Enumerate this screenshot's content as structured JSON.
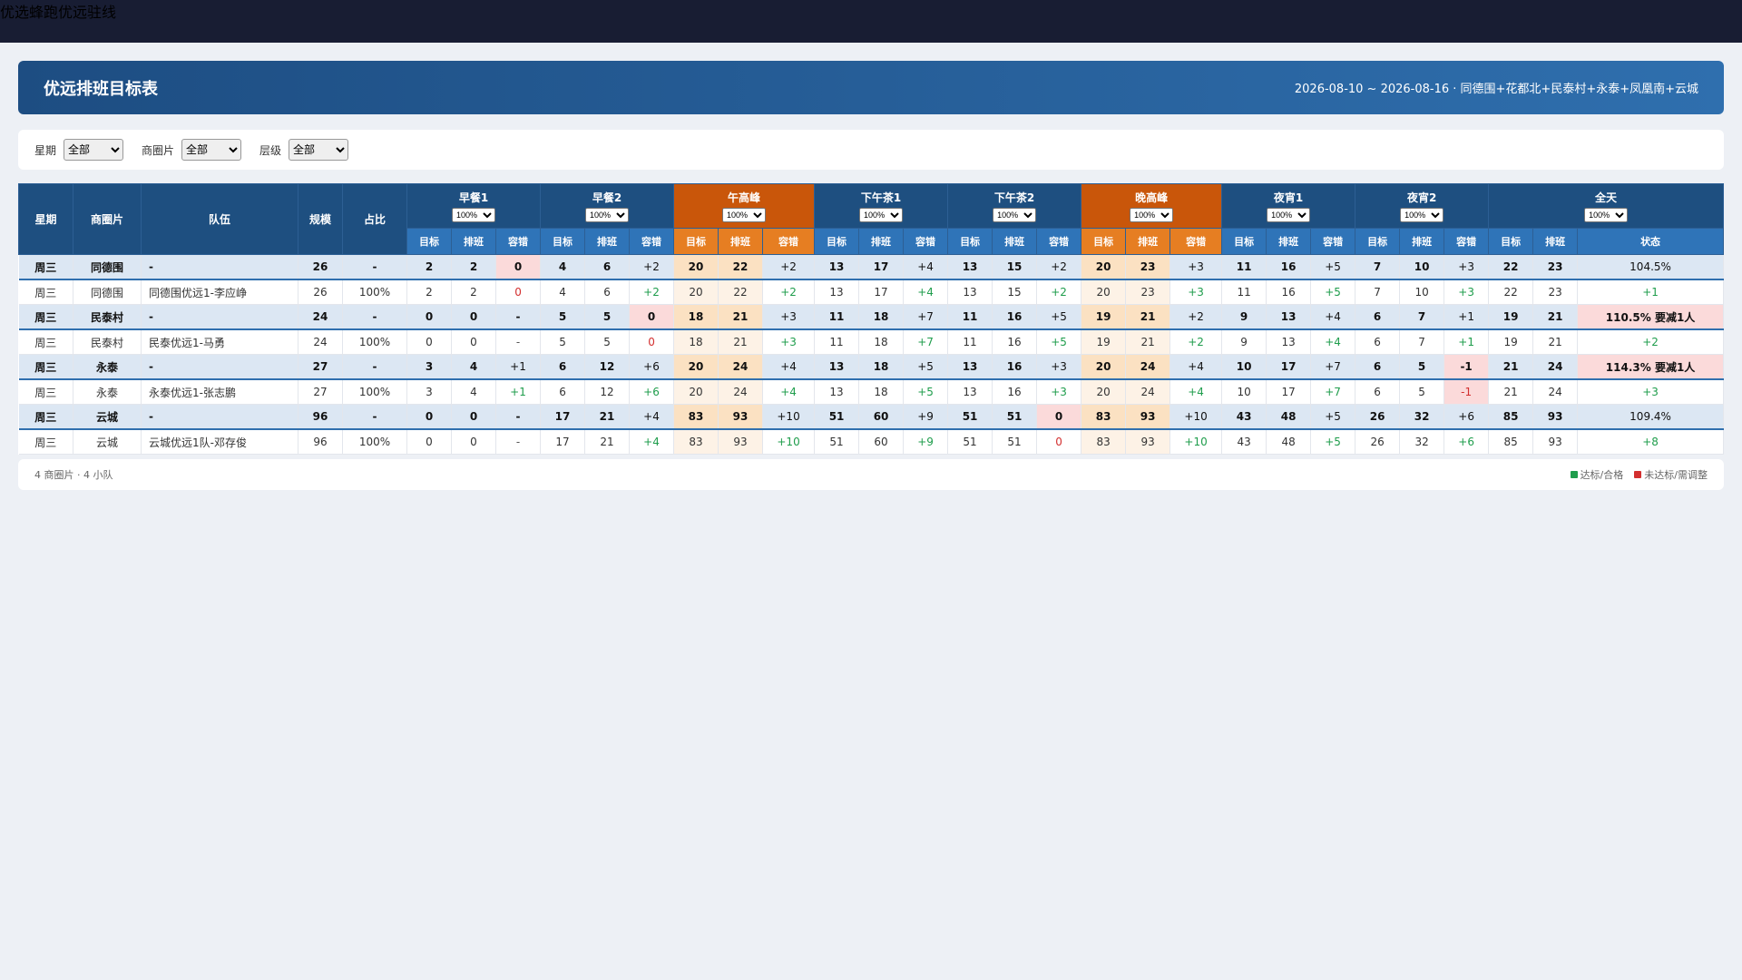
{
  "tabs": {
    "items": [
      "优选",
      "蜂跑",
      "优远",
      "驻线"
    ],
    "active": 2
  },
  "header": {
    "title": "优远排班目标表",
    "subtitle": "2026-08-10 ~ 2026-08-16 · 同德围+花都北+民泰村+永泰+凤凰南+云城"
  },
  "filters": [
    {
      "label": "星期",
      "value": "全部"
    },
    {
      "label": "商圈片",
      "value": "全部"
    },
    {
      "label": "层级",
      "value": "全部"
    }
  ],
  "table": {
    "fixed_columns": [
      "星期",
      "商圈片",
      "队伍",
      "规模",
      "占比"
    ],
    "groups": [
      {
        "name": "早餐1",
        "select": "100%",
        "color": "#1e4f80",
        "columns": [
          "目标",
          "排班",
          "容错"
        ]
      },
      {
        "name": "早餐2",
        "select": "100%",
        "color": "#1e4f80",
        "columns": [
          "目标",
          "排班",
          "容错"
        ]
      },
      {
        "name": "午高峰",
        "select": "100%",
        "color": "#c9560a",
        "columns": [
          "目标",
          "排班",
          "容错"
        ]
      },
      {
        "name": "下午茶1",
        "select": "100%",
        "color": "#1e4f80",
        "columns": [
          "目标",
          "排班",
          "容错"
        ]
      },
      {
        "name": "下午茶2",
        "select": "100%",
        "color": "#1e4f80",
        "columns": [
          "目标",
          "排班",
          "容错"
        ]
      },
      {
        "name": "晚高峰",
        "select": "100%",
        "color": "#c9560a",
        "columns": [
          "目标",
          "排班",
          "容错"
        ]
      },
      {
        "name": "夜宵1",
        "select": "100%",
        "color": "#1e4f80",
        "columns": [
          "目标",
          "排班",
          "容错"
        ]
      },
      {
        "name": "夜宵2",
        "select": "100%",
        "color": "#1e4f80",
        "columns": [
          "目标",
          "排班",
          "容错"
        ]
      },
      {
        "name": "全天",
        "select": "100%",
        "color": "#1e4f80",
        "columns": [
          "目标",
          "排班",
          "状态"
        ]
      }
    ],
    "rows": [
      [
        "周三",
        "同德围",
        "-",
        "26",
        "-",
        "2",
        "2",
        "0",
        "4",
        "6",
        "+2",
        "20",
        "22",
        "+2",
        "13",
        "17",
        "+4",
        "13",
        "15",
        "+2",
        "20",
        "23",
        "+3",
        "11",
        "16",
        "+5",
        "7",
        "10",
        "+3",
        "22",
        "23",
        "104.5%"
      ],
      [
        "周三",
        "同德围",
        "同德围优远1-李应峥",
        "26",
        "100%",
        "2",
        "2",
        "0",
        "4",
        "6",
        "+2",
        "20",
        "22",
        "+2",
        "13",
        "17",
        "+4",
        "13",
        "15",
        "+2",
        "20",
        "23",
        "+3",
        "11",
        "16",
        "+5",
        "7",
        "10",
        "+3",
        "22",
        "23",
        "+1"
      ],
      [
        "周三",
        "民泰村",
        "-",
        "24",
        "-",
        "0",
        "0",
        "-",
        "5",
        "5",
        "0",
        "18",
        "21",
        "+3",
        "11",
        "18",
        "+7",
        "11",
        "16",
        "+5",
        "19",
        "21",
        "+2",
        "9",
        "13",
        "+4",
        "6",
        "7",
        "+1",
        "19",
        "21",
        "110.5% 要减1人"
      ],
      [
        "周三",
        "民泰村",
        "民泰优远1-马勇",
        "24",
        "100%",
        "0",
        "0",
        "-",
        "5",
        "5",
        "0",
        "18",
        "21",
        "+3",
        "11",
        "18",
        "+7",
        "11",
        "16",
        "+5",
        "19",
        "21",
        "+2",
        "9",
        "13",
        "+4",
        "6",
        "7",
        "+1",
        "19",
        "21",
        "+2"
      ],
      [
        "周三",
        "永泰",
        "-",
        "27",
        "-",
        "3",
        "4",
        "+1",
        "6",
        "12",
        "+6",
        "20",
        "24",
        "+4",
        "13",
        "18",
        "+5",
        "13",
        "16",
        "+3",
        "20",
        "24",
        "+4",
        "10",
        "17",
        "+7",
        "6",
        "5",
        "-1",
        "21",
        "24",
        "114.3% 要减1人"
      ],
      [
        "周三",
        "永泰",
        "永泰优远1-张志鹏",
        "27",
        "100%",
        "3",
        "4",
        "+1",
        "6",
        "12",
        "+6",
        "20",
        "24",
        "+4",
        "13",
        "18",
        "+5",
        "13",
        "16",
        "+3",
        "20",
        "24",
        "+4",
        "10",
        "17",
        "+7",
        "6",
        "5",
        "-1",
        "21",
        "24",
        "+3"
      ],
      [
        "周三",
        "云城",
        "-",
        "96",
        "-",
        "0",
        "0",
        "-",
        "17",
        "21",
        "+4",
        "83",
        "93",
        "+10",
        "51",
        "60",
        "+9",
        "51",
        "51",
        "0",
        "83",
        "93",
        "+10",
        "43",
        "48",
        "+5",
        "26",
        "32",
        "+6",
        "85",
        "93",
        "109.4%"
      ],
      [
        "周三",
        "云城",
        "云城优远1队-邓存俊",
        "96",
        "100%",
        "0",
        "0",
        "-",
        "17",
        "21",
        "+4",
        "83",
        "93",
        "+10",
        "51",
        "60",
        "+9",
        "51",
        "51",
        "0",
        "83",
        "93",
        "+10",
        "43",
        "48",
        "+5",
        "26",
        "32",
        "+6",
        "85",
        "93",
        "+8"
      ]
    ]
  },
  "footer": {
    "summary": "4 商圈片 · 4 小队",
    "legend": [
      {
        "label": "达标/合格",
        "color": "#1f9d4c"
      },
      {
        "label": "未达标/需调整",
        "color": "#d32f2f"
      }
    ]
  }
}
